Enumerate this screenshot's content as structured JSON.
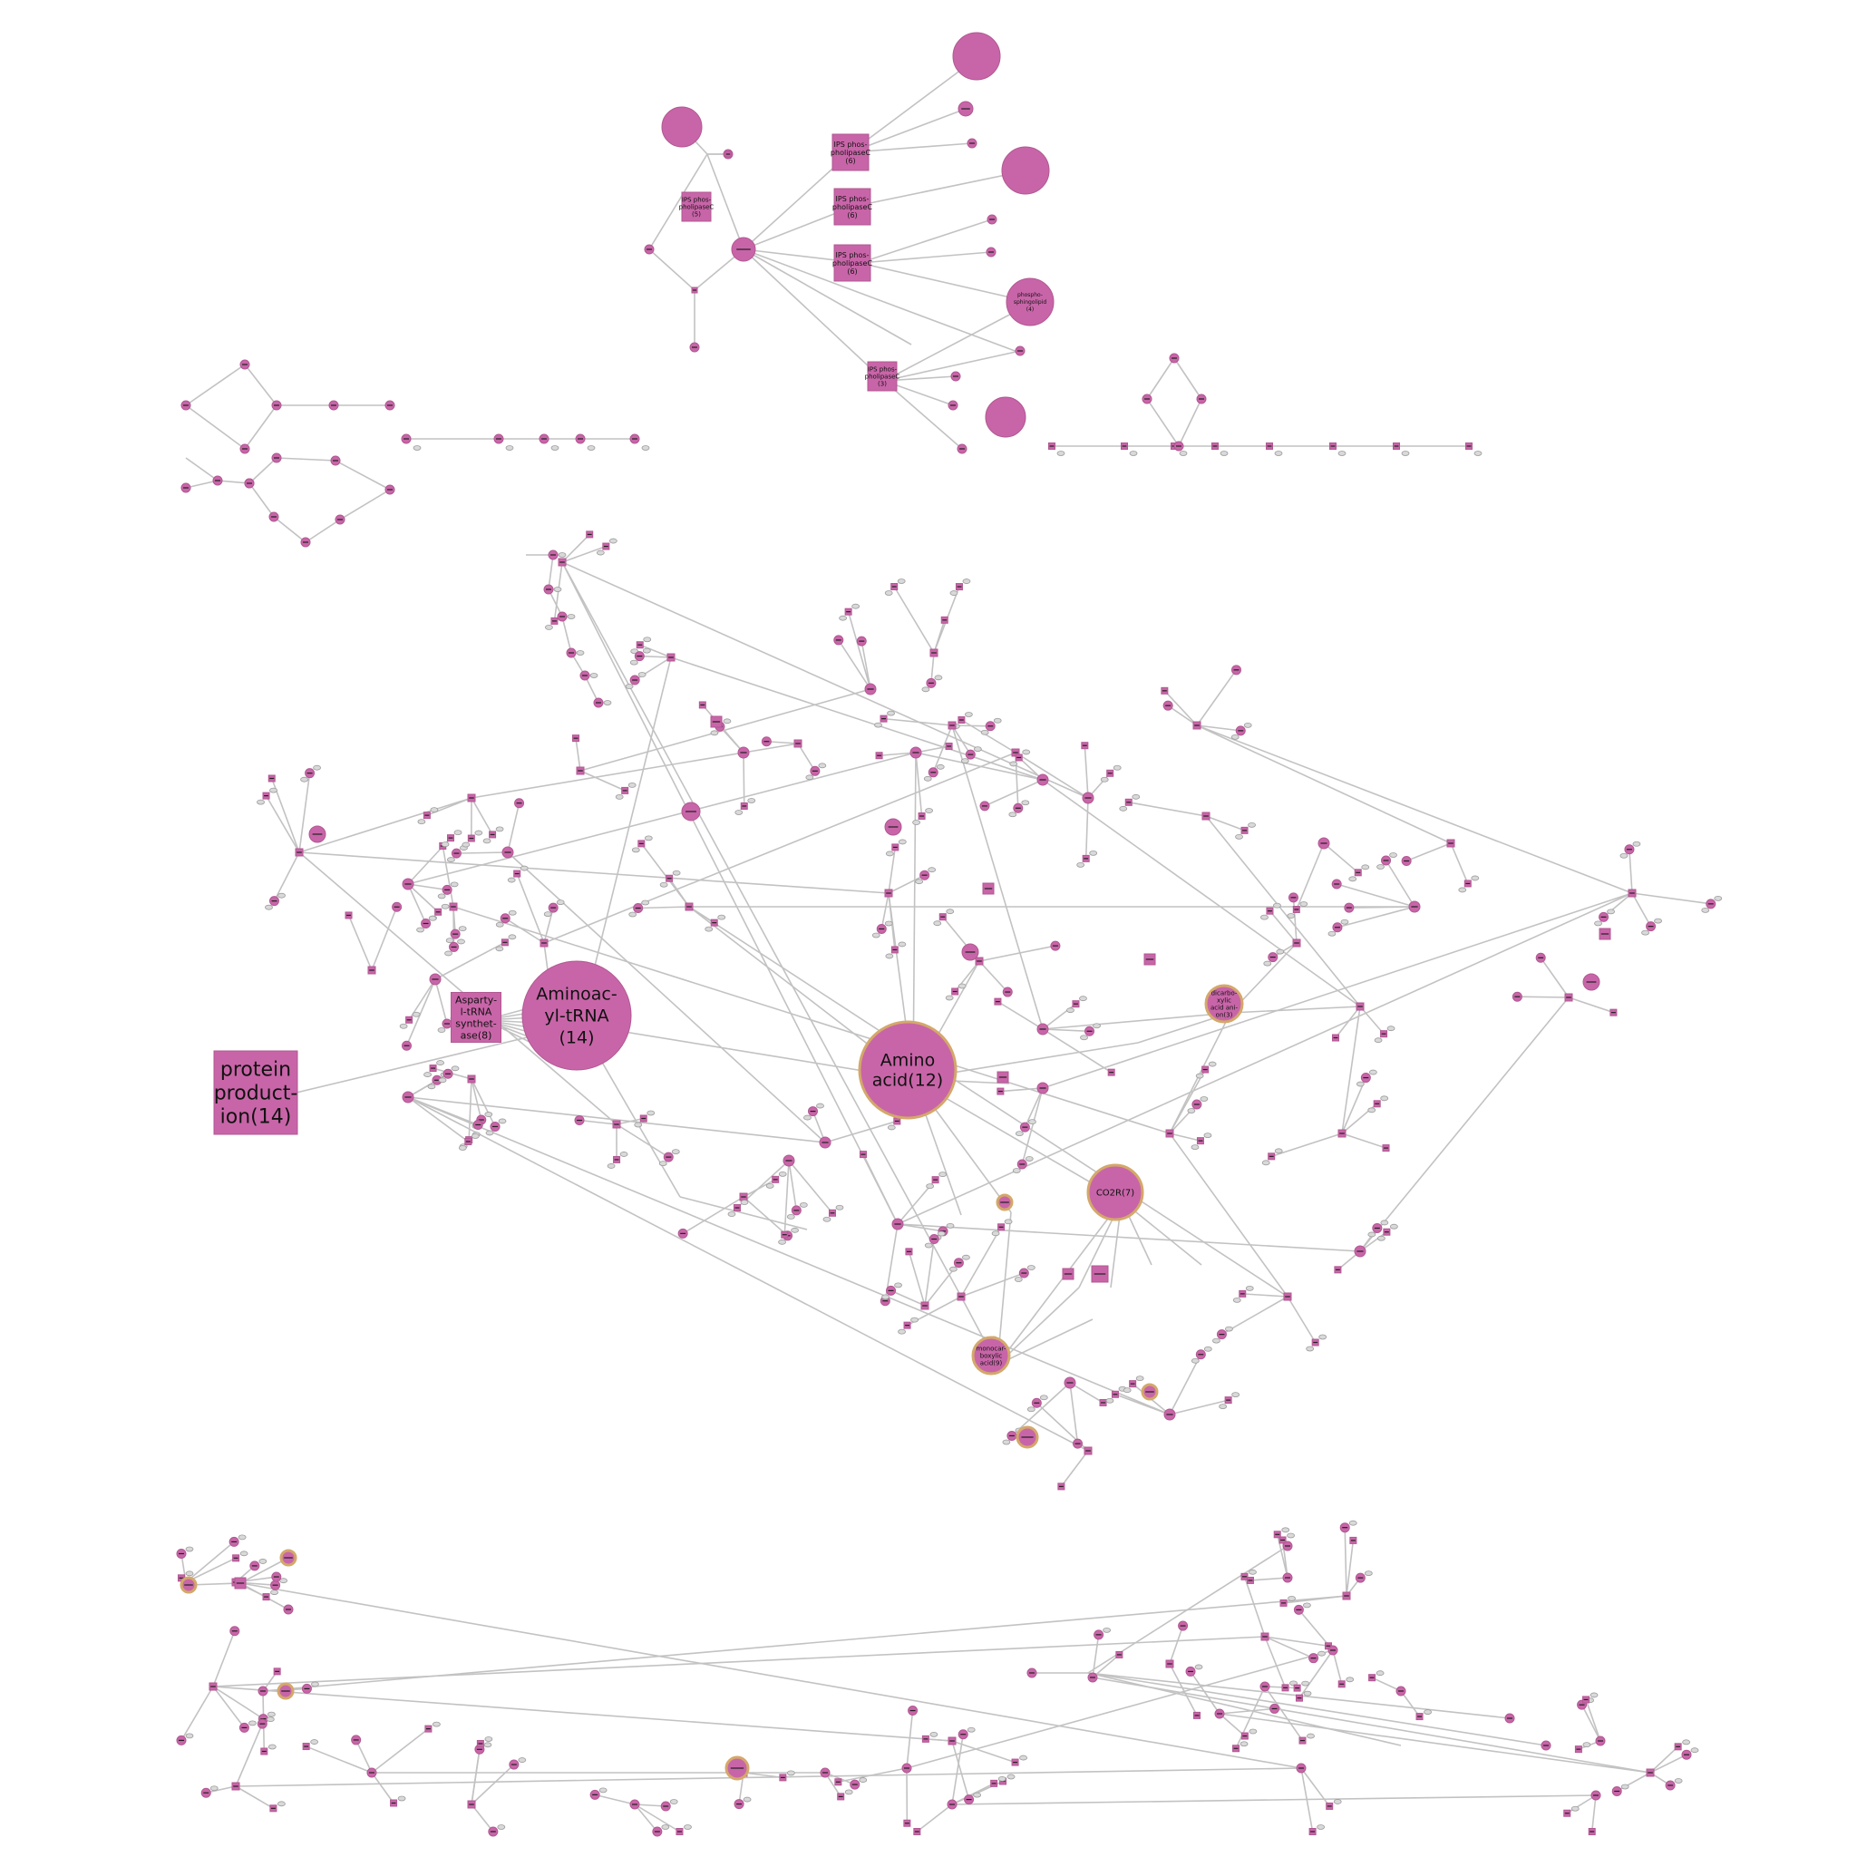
{
  "labels": {
    "protein_production": [
      "protein",
      "product-",
      "ion(14)"
    ],
    "aminoacyl_trna": [
      "Aminoac-",
      "yl-tRNA",
      "(14)"
    ],
    "amino_acid": [
      "Amino",
      "acid(12)"
    ],
    "aspartyl": [
      "Asparty-",
      "l-tRNA",
      "synthet-",
      "ase(8)"
    ],
    "co2r": [
      "CO2R(7)"
    ],
    "monocarboxylic": [
      "monocar-",
      "boxylic",
      "acid(9)"
    ],
    "dicarboxylic": [
      "dicarbo-",
      "xylic",
      "acid ani-",
      "on(3)"
    ],
    "ips1": [
      "IPS phos-",
      "pholipaseC",
      "(5)"
    ],
    "ips2": [
      "IPS phos-",
      "pholipaseC",
      "(6)"
    ],
    "ips3": [
      "IPS phos-",
      "pholipaseC",
      "(6)"
    ],
    "ips4": [
      "IPS phos-",
      "pholipaseC",
      "(6)"
    ],
    "ips5": [
      "IPS phos-",
      "pholipaseC",
      "(3)"
    ],
    "phosphosphingolipid": [
      "phospho-",
      "sphingolipid",
      "(4)"
    ]
  },
  "colors": {
    "node": "#c865a8",
    "edge": "#c2c2c2",
    "ring": "#d4a86a"
  }
}
